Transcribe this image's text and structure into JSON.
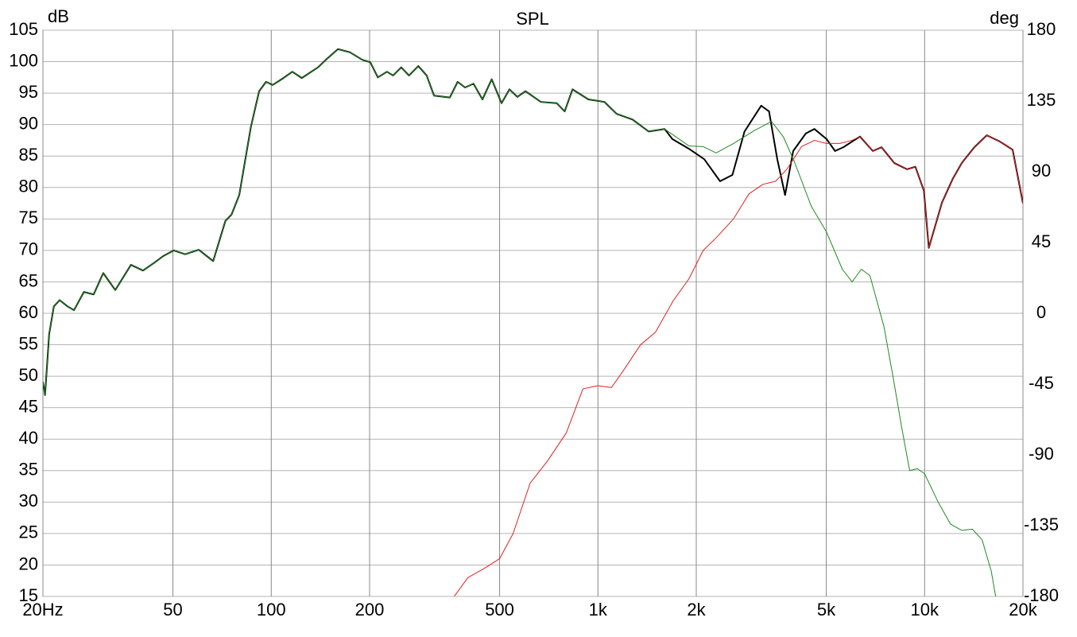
{
  "chart_data": {
    "type": "line",
    "title": "SPL",
    "y_label": "dB",
    "y2_label": "deg",
    "xscale": "log",
    "grid": true,
    "xlim": [
      20,
      20000
    ],
    "xticks": [
      {
        "value": 20,
        "label": "20Hz"
      },
      50,
      100,
      200,
      500,
      {
        "value": 1000,
        "label": "1k"
      },
      {
        "value": 2000,
        "label": "2k"
      },
      {
        "value": 5000,
        "label": "5k"
      },
      {
        "value": 10000,
        "label": "10k"
      },
      {
        "value": 20000,
        "label": "20k"
      }
    ],
    "ylim": [
      15,
      105
    ],
    "yticks": [
      15,
      20,
      25,
      30,
      35,
      40,
      45,
      50,
      55,
      60,
      65,
      70,
      75,
      80,
      85,
      90,
      95,
      100,
      105
    ],
    "y2lim": [
      -180,
      180
    ],
    "y2ticks": [
      -180,
      -135,
      -90,
      -45,
      0,
      45,
      90,
      135,
      180
    ],
    "series": [
      {
        "color": "#000000",
        "width": 2,
        "x": [
          20,
          20.3,
          20.9,
          21.6,
          22.5,
          23.8,
          24.9,
          26.7,
          28.6,
          30.6,
          33.3,
          37.2,
          40.5,
          44,
          46.7,
          50.3,
          54.5,
          60,
          66.4,
          72.4,
          75.6,
          79.8,
          86.6,
          91.8,
          96.4,
          101,
          109,
          116,
          124,
          139,
          147,
          160,
          174,
          190,
          201,
          212,
          226,
          236,
          250,
          264,
          282,
          299,
          315,
          352,
          372,
          392,
          416,
          443,
          473,
          507,
          536,
          567,
          600,
          669,
          748,
          791,
          836,
          935,
          1047,
          1141,
          1276,
          1430,
          1600,
          1690,
          1893,
          2116,
          2365,
          2580,
          2810,
          3160,
          3340,
          3540,
          3740,
          3960,
          4330,
          4600,
          5010,
          5320,
          5640,
          6340,
          6940,
          7380,
          8070,
          8840,
          9370,
          9950,
          10300,
          11300,
          12200,
          13000,
          14200,
          15500,
          17000,
          18600,
          20000
        ],
        "values": [
          49.1,
          47,
          56.7,
          61.1,
          62.1,
          61.1,
          60.5,
          63.4,
          63,
          66.4,
          63.7,
          67.7,
          66.8,
          68.1,
          69.1,
          70,
          69.4,
          70.1,
          68.3,
          74.7,
          75.7,
          78.8,
          89.6,
          95.3,
          96.8,
          96.3,
          97.4,
          98.4,
          97.4,
          99.1,
          100.3,
          102,
          101.5,
          100.3,
          99.9,
          97.5,
          98.4,
          97.8,
          99.1,
          97.8,
          99.3,
          97.8,
          94.6,
          94.3,
          96.8,
          95.9,
          96.5,
          94,
          97.2,
          93.4,
          95.6,
          94.4,
          95.3,
          93.6,
          93.4,
          92.1,
          95.6,
          94,
          93.6,
          91.7,
          90.8,
          88.9,
          89.3,
          87.7,
          86.2,
          84.5,
          81,
          82,
          88.9,
          93,
          92.1,
          84.5,
          78.8,
          85.8,
          88.6,
          89.3,
          87.7,
          85.8,
          86.4,
          88.1,
          85.8,
          86.4,
          83.9,
          82.9,
          83.3,
          79.5,
          70.4,
          77.6,
          81.4,
          83.9,
          86.4,
          88.3,
          87.3,
          86,
          77.5
        ]
      },
      {
        "color": "#1f8a1f",
        "width": 1,
        "x": [
          20,
          20.3,
          20.9,
          21.6,
          22.5,
          23.8,
          24.9,
          26.7,
          28.6,
          30.6,
          33.3,
          37.2,
          40.5,
          44,
          46.7,
          50.3,
          54.5,
          60,
          66.4,
          72.4,
          75.6,
          79.8,
          86.6,
          91.8,
          96.4,
          101,
          109,
          116,
          124,
          139,
          147,
          160,
          174,
          190,
          201,
          212,
          226,
          236,
          250,
          264,
          282,
          299,
          315,
          352,
          372,
          392,
          416,
          443,
          473,
          507,
          536,
          567,
          600,
          669,
          748,
          791,
          836,
          935,
          1047,
          1141,
          1276,
          1430,
          1600,
          1900,
          2100,
          2300,
          2600,
          3000,
          3400,
          3700,
          4000,
          4500,
          5000,
          5600,
          6000,
          6400,
          6800,
          7500,
          8000,
          8500,
          9000,
          9500,
          10000,
          11000,
          12000,
          13000,
          14000,
          15000,
          16000,
          16500
        ],
        "values": [
          49.1,
          47,
          56.7,
          61.1,
          62.1,
          61.1,
          60.5,
          63.4,
          63,
          66.4,
          63.7,
          67.7,
          66.8,
          68.1,
          69.1,
          70,
          69.4,
          70.1,
          68.3,
          74.7,
          75.7,
          78.8,
          89.6,
          95.3,
          96.8,
          96.3,
          97.4,
          98.4,
          97.4,
          99.1,
          100.3,
          102,
          101.5,
          100.3,
          99.9,
          97.5,
          98.4,
          97.8,
          99.1,
          97.8,
          99.3,
          97.8,
          94.6,
          94.3,
          96.8,
          95.9,
          96.5,
          94,
          97.2,
          93.4,
          95.6,
          94.4,
          95.3,
          93.6,
          93.4,
          92.1,
          95.6,
          94,
          93.6,
          91.7,
          90.8,
          88.9,
          89.3,
          86.6,
          86.5,
          85.5,
          87,
          89,
          90.5,
          88,
          84,
          77,
          73,
          67,
          65,
          67,
          66,
          58,
          50,
          42,
          35,
          35.3,
          34.5,
          30,
          26.5,
          25.5,
          25.7,
          24,
          19,
          15
        ]
      },
      {
        "color": "#e02020",
        "width": 1,
        "x": [
          363,
          400,
          450,
          500,
          550,
          620,
          700,
          800,
          900,
          1000,
          1100,
          1200,
          1350,
          1500,
          1700,
          1900,
          2100,
          2300,
          2600,
          2900,
          3200,
          3500,
          3800,
          4200,
          4600,
          5000,
          5500,
          6000,
          6340,
          6940,
          7380,
          8070,
          8840,
          9370,
          9950,
          10300,
          11300,
          12200,
          13000,
          14200,
          15500,
          17000,
          18600,
          20000
        ],
        "values": [
          15,
          18,
          19.5,
          21,
          25,
          33,
          36.5,
          41,
          48,
          48.5,
          48.2,
          51,
          55,
          57,
          62,
          65.5,
          70,
          72,
          75,
          79,
          80.5,
          81,
          83,
          86.5,
          87.5,
          87,
          87,
          87.5,
          88.1,
          85.8,
          86.4,
          83.9,
          82.9,
          83.3,
          79.5,
          70.4,
          77.6,
          81.4,
          83.9,
          86.4,
          88.3,
          87.3,
          86,
          77.5
        ]
      }
    ]
  }
}
